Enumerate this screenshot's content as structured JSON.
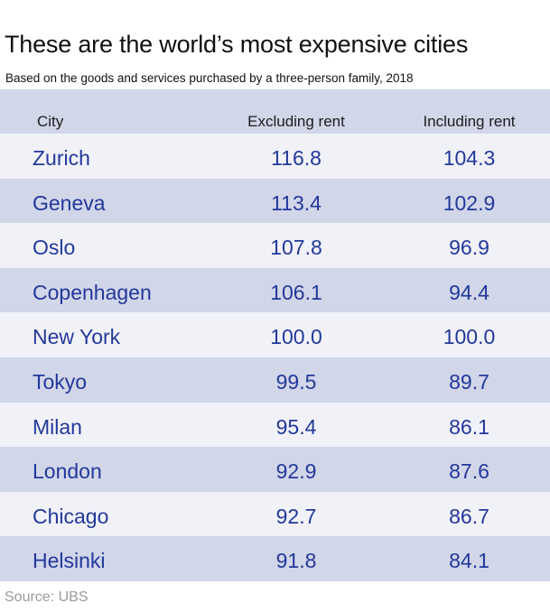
{
  "title": "These are the world’s most expensive cities",
  "subtitle": "Based on the goods and services purchased by a three-person family, 2018",
  "source": "Source: UBS",
  "colors": {
    "header_band": "#d1d6e9",
    "row_light": "#f1f2f8",
    "row_dark": "#d1d6e9",
    "value_text": "#23389a",
    "source_text": "#9a9a9a"
  },
  "chart_data": {
    "type": "table",
    "title": "These are the world’s most expensive cities",
    "subtitle": "Based on the goods and services purchased by a three-person family, 2018",
    "columns": [
      "City",
      "Excluding rent",
      "Including rent"
    ],
    "rows": [
      {
        "city": "Zurich",
        "excluding_rent": "116.8",
        "including_rent": "104.3"
      },
      {
        "city": "Geneva",
        "excluding_rent": "113.4",
        "including_rent": "102.9"
      },
      {
        "city": "Oslo",
        "excluding_rent": "107.8",
        "including_rent": "96.9"
      },
      {
        "city": "Copenhagen",
        "excluding_rent": "106.1",
        "including_rent": "94.4"
      },
      {
        "city": "New York",
        "excluding_rent": "100.0",
        "including_rent": "100.0"
      },
      {
        "city": "Tokyo",
        "excluding_rent": "99.5",
        "including_rent": "89.7"
      },
      {
        "city": "Milan",
        "excluding_rent": "95.4",
        "including_rent": "86.1"
      },
      {
        "city": "London",
        "excluding_rent": "92.9",
        "including_rent": "87.6"
      },
      {
        "city": "Chicago",
        "excluding_rent": "92.7",
        "including_rent": "86.7"
      },
      {
        "city": "Helsinki",
        "excluding_rent": "91.8",
        "including_rent": "84.1"
      }
    ],
    "source": "Source: UBS"
  }
}
